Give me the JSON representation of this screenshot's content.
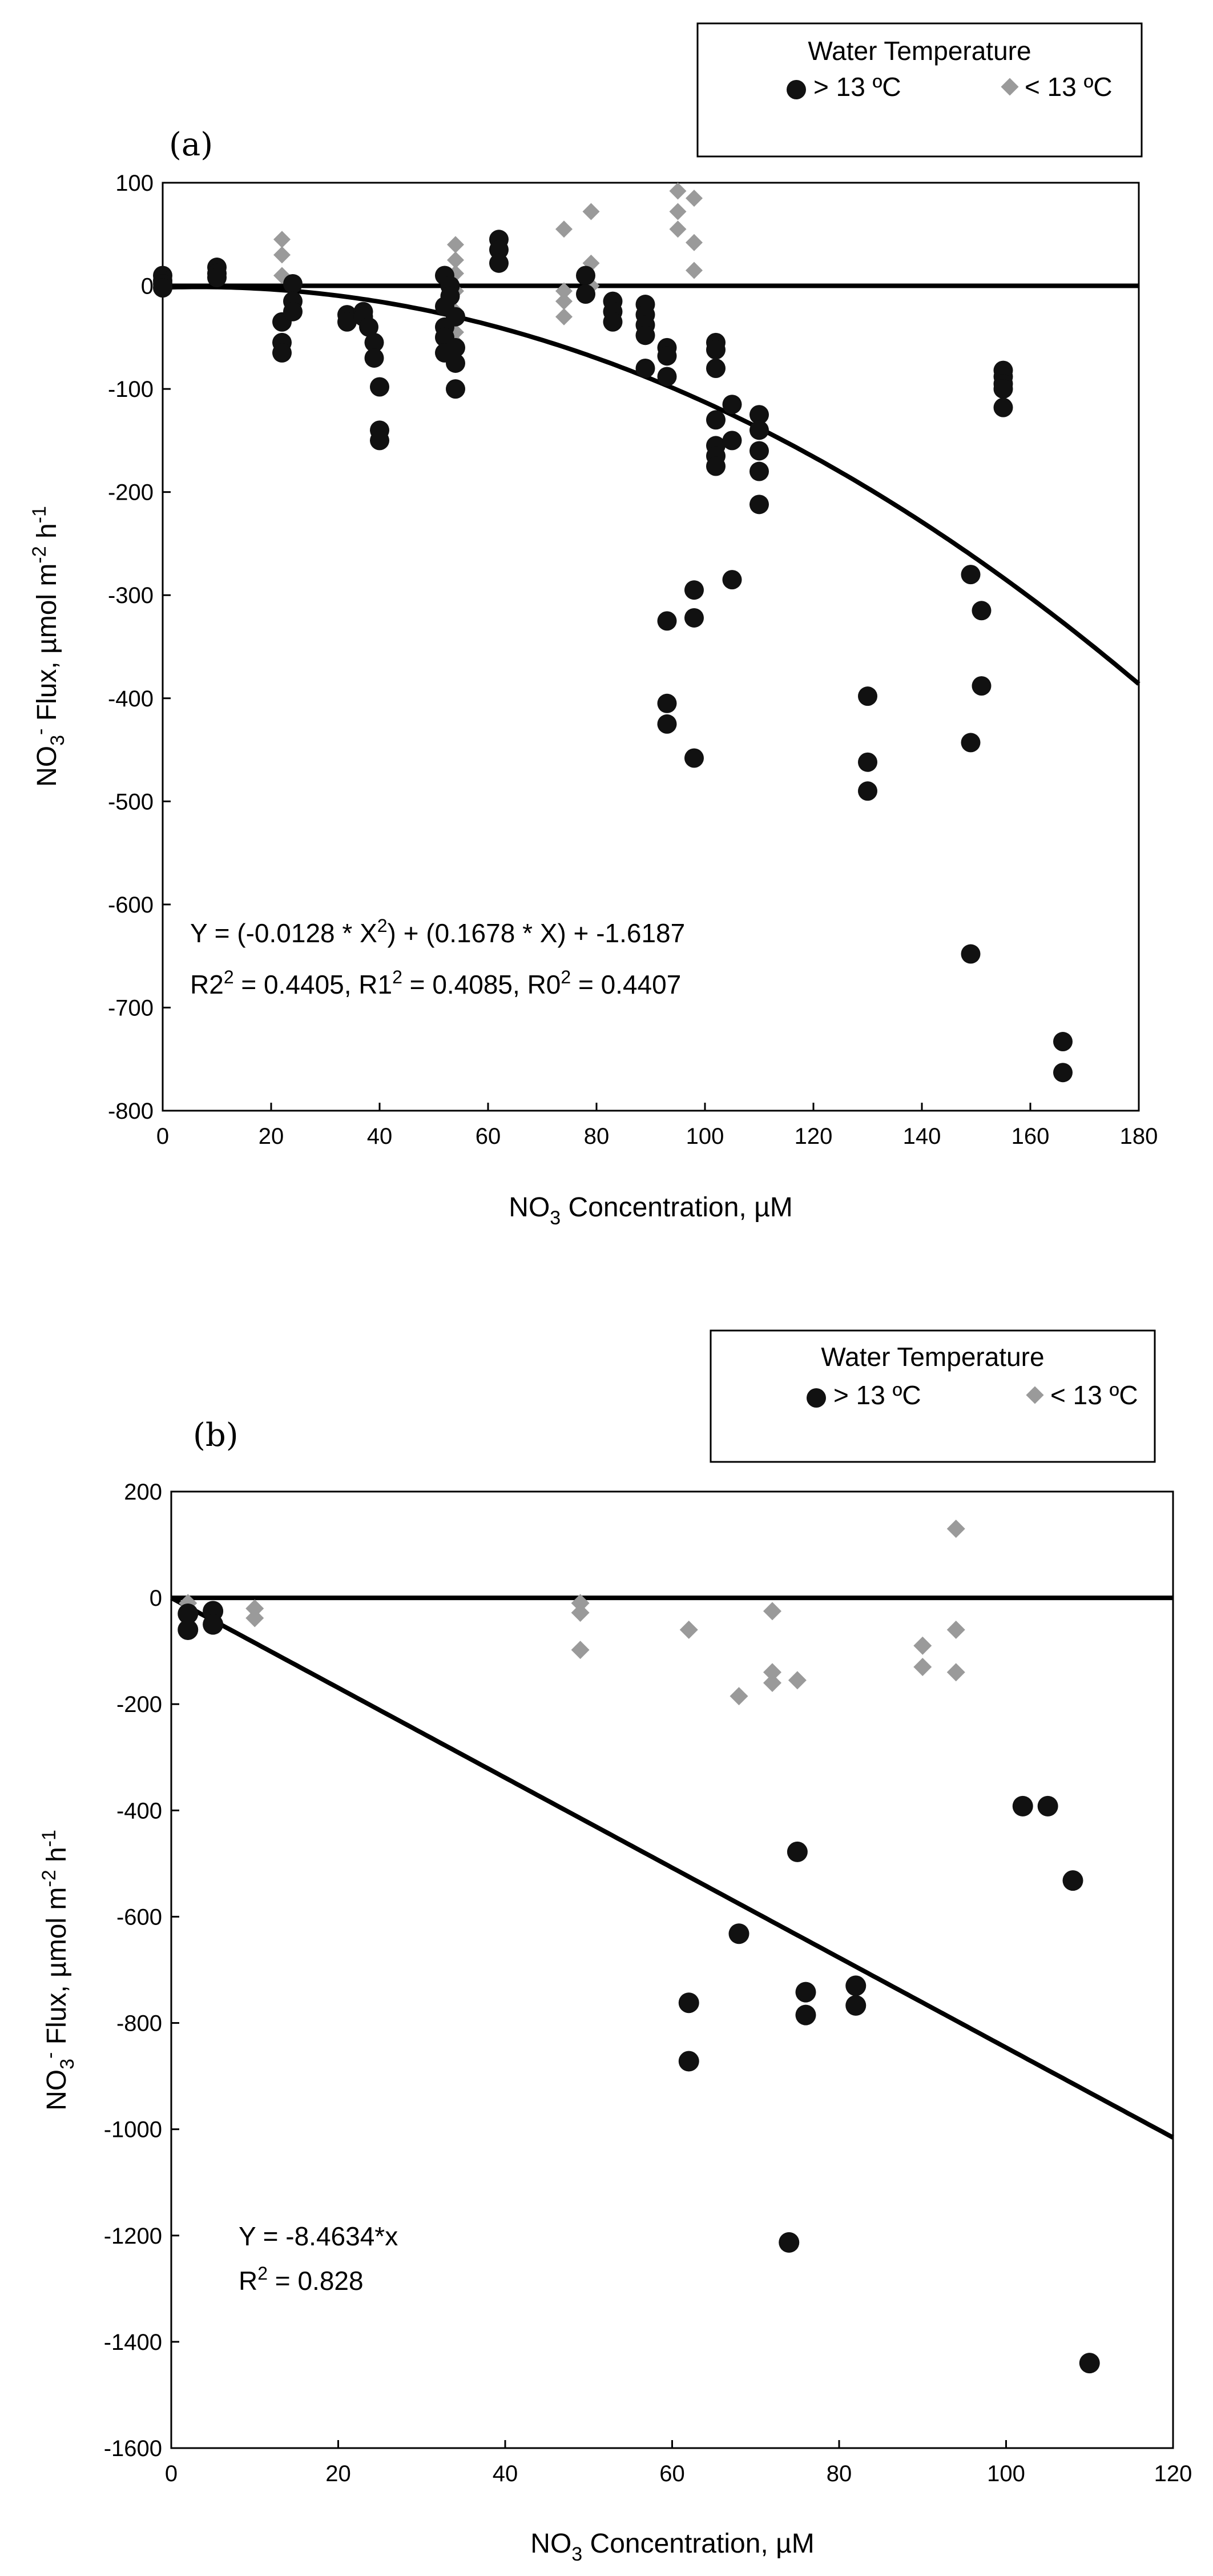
{
  "panels": [
    {
      "label": "(a)",
      "legend": {
        "title": "Water Temperature",
        "warm": "> 13 ºC",
        "cold": "< 13 ºC"
      },
      "colors": {
        "warm": "#111111",
        "cold": "#9a9a9a"
      },
      "equation": {
        "line1": "Y = (-0.0128 * X2) + (0.1678 * X) + -1.6187",
        "line2": "R22 = 0.4405, R12 = 0.4085, R02 = 0.4407"
      }
    },
    {
      "label": "(b)",
      "legend": {
        "title": "Water Temperature",
        "warm": "> 13 ºC",
        "cold": "< 13 ºC"
      },
      "colors": {
        "warm": "#111111",
        "cold": "#9a9a9a"
      },
      "equation": {
        "line1": "Y = -8.4634*x",
        "line2": "R2 = 0.828"
      }
    }
  ],
  "chart_data": [
    {
      "type": "scatter",
      "title": "(a)",
      "xlabel": "NO3 Concentration, µM",
      "ylabel": "NO3- Flux, µmol m-2 h-1",
      "xlim": [
        0,
        180
      ],
      "ylim": [
        -800,
        100
      ],
      "xticks": [
        0,
        20,
        40,
        60,
        80,
        100,
        120,
        140,
        160,
        180
      ],
      "yticks": [
        100,
        0,
        -100,
        -200,
        -300,
        -400,
        -500,
        -600,
        -700,
        -800
      ],
      "fit": {
        "kind": "quadratic",
        "a": -0.0128,
        "b": 0.1678,
        "c": -1.6187
      },
      "series": [
        {
          "name": "> 13 ºC",
          "points": [
            [
              0,
              10
            ],
            [
              0,
              5
            ],
            [
              0,
              2
            ],
            [
              0,
              -2
            ],
            [
              10,
              18
            ],
            [
              10,
              12
            ],
            [
              10,
              8
            ],
            [
              22,
              -35
            ],
            [
              22,
              -55
            ],
            [
              22,
              -65
            ],
            [
              24,
              2
            ],
            [
              24,
              -15
            ],
            [
              24,
              -25
            ],
            [
              34,
              -28
            ],
            [
              34,
              -35
            ],
            [
              37,
              -25
            ],
            [
              37,
              -30
            ],
            [
              38,
              -40
            ],
            [
              39,
              -55
            ],
            [
              39,
              -70
            ],
            [
              40,
              -98
            ],
            [
              40,
              -140
            ],
            [
              40,
              -150
            ],
            [
              52,
              10
            ],
            [
              52,
              -20
            ],
            [
              52,
              -40
            ],
            [
              52,
              -50
            ],
            [
              52,
              -65
            ],
            [
              53,
              0
            ],
            [
              53,
              -10
            ],
            [
              54,
              -30
            ],
            [
              54,
              -60
            ],
            [
              54,
              -75
            ],
            [
              54,
              -100
            ],
            [
              62,
              45
            ],
            [
              62,
              35
            ],
            [
              62,
              22
            ],
            [
              78,
              10
            ],
            [
              78,
              -8
            ],
            [
              83,
              -15
            ],
            [
              83,
              -25
            ],
            [
              83,
              -35
            ],
            [
              89,
              -18
            ],
            [
              89,
              -28
            ],
            [
              89,
              -38
            ],
            [
              89,
              -48
            ],
            [
              89,
              -80
            ],
            [
              93,
              -60
            ],
            [
              93,
              -68
            ],
            [
              93,
              -88
            ],
            [
              93,
              -325
            ],
            [
              93,
              -405
            ],
            [
              93,
              -425
            ],
            [
              98,
              -295
            ],
            [
              98,
              -322
            ],
            [
              98,
              -458
            ],
            [
              102,
              -55
            ],
            [
              102,
              -62
            ],
            [
              102,
              -80
            ],
            [
              102,
              -130
            ],
            [
              102,
              -155
            ],
            [
              102,
              -165
            ],
            [
              102,
              -175
            ],
            [
              105,
              -115
            ],
            [
              105,
              -150
            ],
            [
              105,
              -285
            ],
            [
              110,
              -125
            ],
            [
              110,
              -140
            ],
            [
              110,
              -160
            ],
            [
              110,
              -180
            ],
            [
              110,
              -212
            ],
            [
              130,
              -398
            ],
            [
              130,
              -462
            ],
            [
              130,
              -490
            ],
            [
              149,
              -280
            ],
            [
              149,
              -443
            ],
            [
              149,
              -648
            ],
            [
              151,
              -315
            ],
            [
              151,
              -388
            ],
            [
              155,
              -82
            ],
            [
              155,
              -88
            ],
            [
              155,
              -95
            ],
            [
              155,
              -100
            ],
            [
              155,
              -118
            ],
            [
              166,
              -733
            ],
            [
              166,
              -763
            ]
          ]
        },
        {
          "name": "< 13 ºC",
          "points": [
            [
              22,
              45
            ],
            [
              22,
              30
            ],
            [
              22,
              10
            ],
            [
              54,
              40
            ],
            [
              54,
              25
            ],
            [
              54,
              12
            ],
            [
              54,
              -5
            ],
            [
              54,
              -25
            ],
            [
              54,
              -45
            ],
            [
              54,
              -55
            ],
            [
              74,
              55
            ],
            [
              74,
              -5
            ],
            [
              74,
              -15
            ],
            [
              74,
              -30
            ],
            [
              79,
              72
            ],
            [
              79,
              22
            ],
            [
              79,
              0
            ],
            [
              95,
              92
            ],
            [
              95,
              72
            ],
            [
              95,
              55
            ],
            [
              98,
              85
            ],
            [
              98,
              42
            ],
            [
              98,
              15
            ]
          ]
        }
      ]
    },
    {
      "type": "scatter",
      "title": "(b)",
      "xlabel": "NO3 Concentration, µM",
      "ylabel": "NO3- Flux, µmol m-2 h-1",
      "xlim": [
        0,
        120
      ],
      "ylim": [
        -1600,
        200
      ],
      "xticks": [
        0,
        20,
        40,
        60,
        80,
        100,
        120
      ],
      "yticks": [
        200,
        0,
        -200,
        -400,
        -600,
        -800,
        -1000,
        -1200,
        -1400,
        -1600
      ],
      "fit": {
        "kind": "linear",
        "slope": -8.4634
      },
      "series": [
        {
          "name": "> 13 ºC",
          "points": [
            [
              2,
              -30
            ],
            [
              2,
              -60
            ],
            [
              5,
              -25
            ],
            [
              5,
              -50
            ],
            [
              62,
              -762
            ],
            [
              62,
              -872
            ],
            [
              68,
              -632
            ],
            [
              74,
              -1213
            ],
            [
              75,
              -478
            ],
            [
              76,
              -742
            ],
            [
              76,
              -785
            ],
            [
              82,
              -730
            ],
            [
              82,
              -767
            ],
            [
              102,
              -392
            ],
            [
              105,
              -392
            ],
            [
              108,
              -532
            ],
            [
              110,
              -1440
            ]
          ]
        },
        {
          "name": "< 13 ºC",
          "points": [
            [
              2,
              -10
            ],
            [
              10,
              -20
            ],
            [
              10,
              -38
            ],
            [
              49,
              -10
            ],
            [
              49,
              -28
            ],
            [
              49,
              -98
            ],
            [
              62,
              -60
            ],
            [
              68,
              -185
            ],
            [
              72,
              -25
            ],
            [
              72,
              -140
            ],
            [
              72,
              -160
            ],
            [
              75,
              -155
            ],
            [
              90,
              -90
            ],
            [
              90,
              -130
            ],
            [
              94,
              130
            ],
            [
              94,
              -60
            ],
            [
              94,
              -140
            ]
          ]
        }
      ]
    }
  ]
}
